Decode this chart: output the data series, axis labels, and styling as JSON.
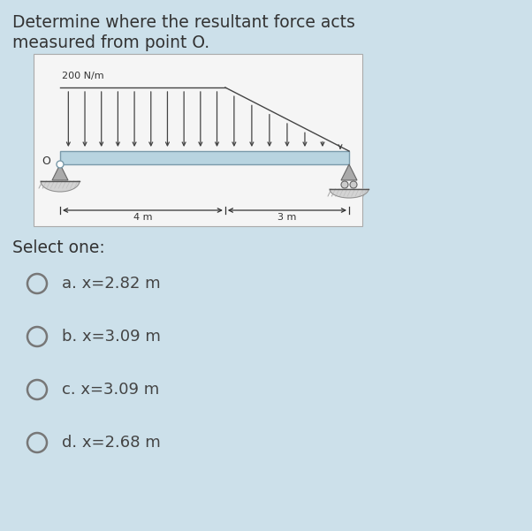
{
  "title_line1": "Determine where the resultant force acts",
  "title_line2": "measured from point O.",
  "bg_color": "#cce0ea",
  "diagram_bg": "#f5f5f5",
  "select_label": "Select one:",
  "options": [
    "a. x=2.82 m",
    "b. x=3.09 m",
    "c. x=3.09 m",
    "d. x=2.68 m"
  ],
  "load_label": "200 N/m",
  "dim_label_left": "4 m",
  "dim_label_right": "3 m",
  "beam_color": "#b8d4e0",
  "beam_edge_color": "#7a9aaa",
  "arrow_color": "#444444",
  "support_color": "#aaaaaa",
  "text_color": "#333333",
  "option_text_color": "#444444",
  "title_fontsize": 13.5,
  "select_fontsize": 13.5,
  "option_fontsize": 13.0
}
